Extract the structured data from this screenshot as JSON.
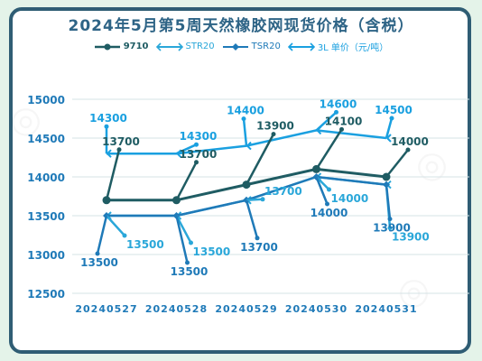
{
  "title": "2024年5月第5周天然橡胶网现货价格（含税）",
  "colors": {
    "s9710": "#1f5c63",
    "str20": "#2aa7d9",
    "tsr20": "#1f7ab8",
    "thai3l": "#1aa0e0",
    "grid": "#d6e3e6",
    "frame": "#2f5d74"
  },
  "chart_data": {
    "type": "line",
    "title": "2024年5月第5周天然橡胶网现货价格（含税）",
    "x": [
      "20240527",
      "20240528",
      "20240529",
      "20240530",
      "20240531"
    ],
    "ylim": [
      12500,
      15000
    ],
    "yticks": [
      12500,
      13000,
      13500,
      14000,
      14500,
      15000
    ],
    "legend_position": "top",
    "series": [
      {
        "name": "9710",
        "values": [
          13700,
          13700,
          13900,
          14100,
          14000
        ],
        "labels": [
          "13700",
          "13700",
          "13900",
          "14100",
          "14000"
        ]
      },
      {
        "name": "STR20",
        "values": [
          13500,
          13500,
          13700,
          14000,
          13900
        ],
        "labels": [
          "13500",
          "13500",
          "13700",
          "14000",
          "13900"
        ]
      },
      {
        "name": "TSR20",
        "values": [
          13500,
          13500,
          13700,
          14000,
          13900
        ],
        "labels": [
          "13500",
          "13500",
          "13700",
          "14000",
          "13900"
        ]
      },
      {
        "name": "3L 单价（元/吨）",
        "values": [
          14300,
          14300,
          14400,
          14600,
          14500
        ],
        "labels": [
          "14300",
          "14300",
          "14400",
          "14600",
          "14500"
        ]
      }
    ]
  }
}
